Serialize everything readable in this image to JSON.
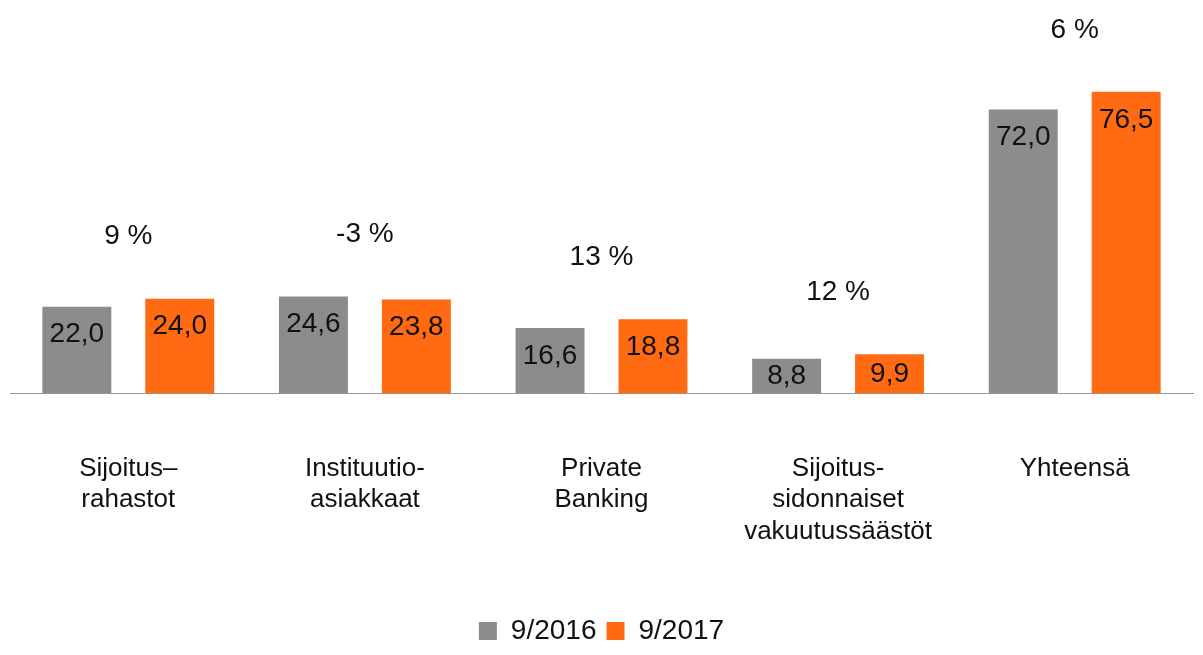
{
  "chart_data": {
    "type": "bar",
    "categories": [
      "Sijoitus–\nrahastot",
      "Instituutio-\nasiakkaat",
      "Private\nBanking",
      "Sijoitus-\nsidonnaiset\nvakuutussäästöt",
      "Yhteensä"
    ],
    "series": [
      {
        "name": "9/2016",
        "color": "#8c8c8c",
        "values": [
          22.0,
          24.6,
          16.6,
          8.8,
          72.0
        ],
        "value_labels": [
          "22,0",
          "24,6",
          "16,6",
          "8,8",
          "72,0"
        ]
      },
      {
        "name": "9/2017",
        "color": "#ff6a13",
        "values": [
          24.0,
          23.8,
          18.8,
          9.9,
          76.5
        ],
        "value_labels": [
          "24,0",
          "23,8",
          "18,8",
          "9,9",
          "76,5"
        ]
      }
    ],
    "annotations": [
      "9 %",
      "-3 %",
      "13 %",
      "12 %",
      "6 %"
    ],
    "legend": "bottom",
    "grid": false
  }
}
